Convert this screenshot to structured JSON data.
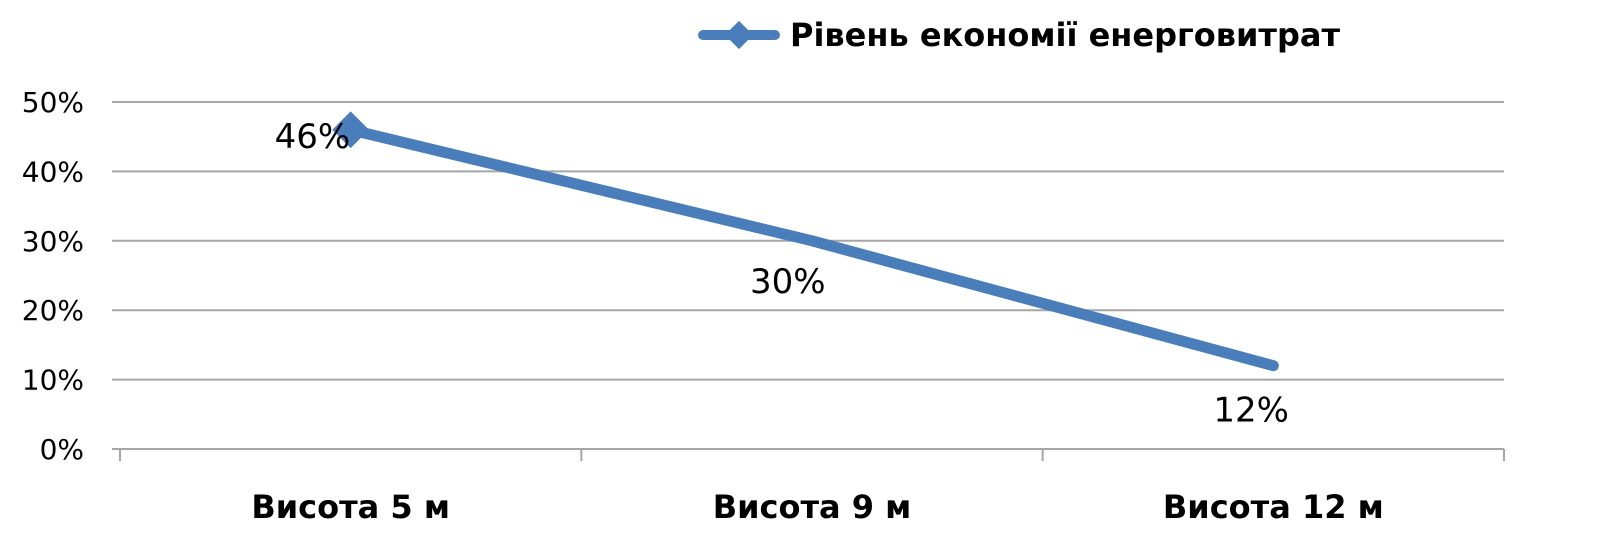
{
  "chart_data": {
    "type": "line",
    "categories": [
      "Висота 5 м",
      "Висота 9 м",
      "Висота 12 м"
    ],
    "series": [
      {
        "name": "Рівень економії енерговитрат",
        "values": [
          0.46,
          0.3,
          0.12
        ],
        "labels": [
          "46%",
          "30%",
          "12%"
        ],
        "color": "#4A7EBB"
      }
    ],
    "y_ticks": [
      0,
      0.1,
      0.2,
      0.3,
      0.4,
      0.5
    ],
    "y_tick_labels": [
      "0%",
      "10%",
      "20%",
      "30%",
      "40%",
      "50%"
    ],
    "ylim": [
      0,
      0.5
    ],
    "grid": true,
    "legend_position": "top",
    "marker": "diamond on first point",
    "colors": {
      "gridline": "#A6A6A6",
      "axis": "#A6A6A6"
    }
  }
}
